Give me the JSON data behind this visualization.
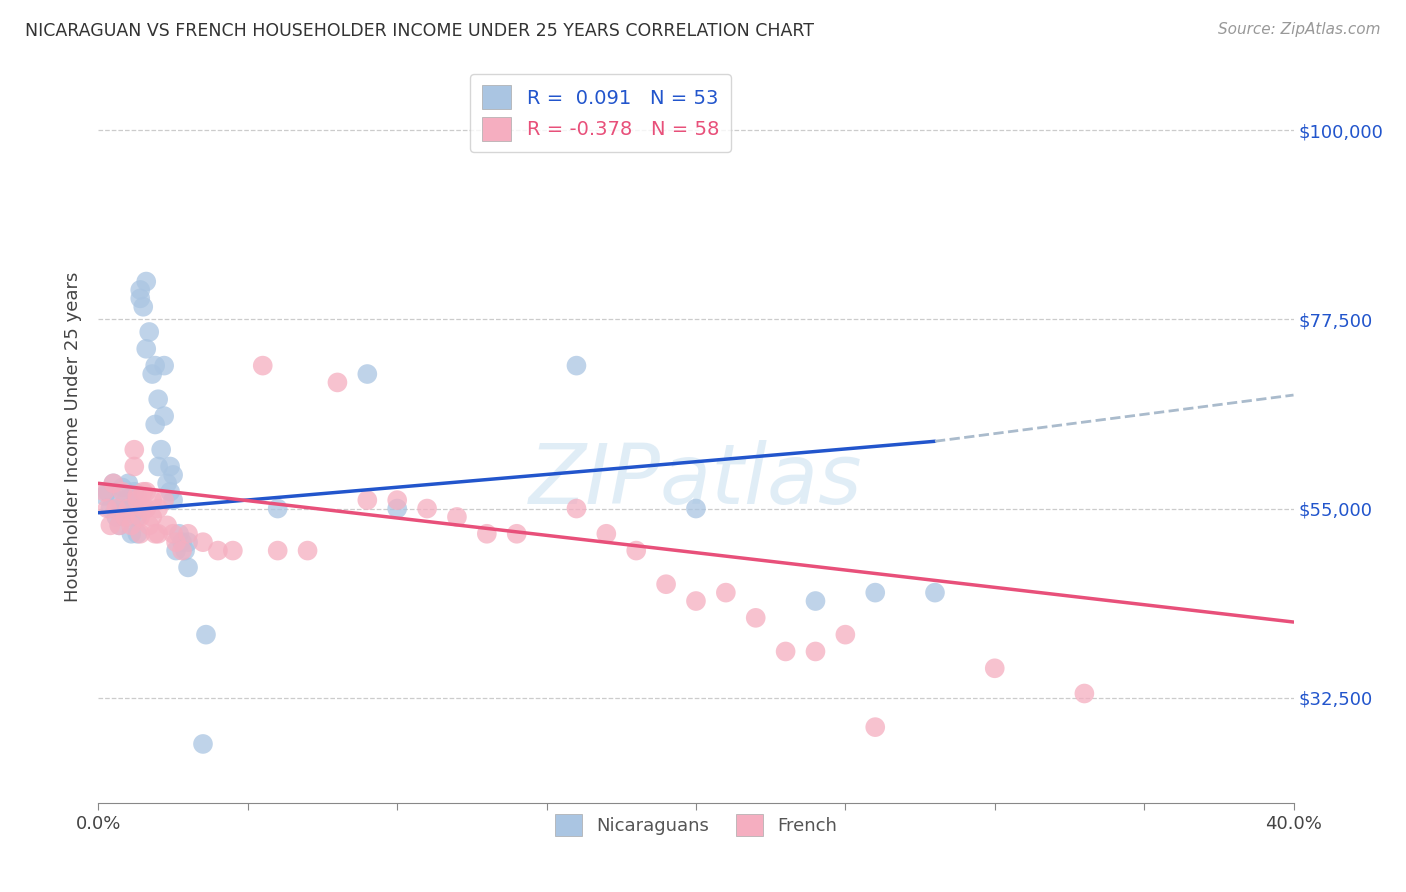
{
  "title": "NICARAGUAN VS FRENCH HOUSEHOLDER INCOME UNDER 25 YEARS CORRELATION CHART",
  "source": "Source: ZipAtlas.com",
  "ylabel": "Householder Income Under 25 years",
  "xlim": [
    0.0,
    0.4
  ],
  "ylim": [
    20000,
    107000
  ],
  "yticks": [
    32500,
    55000,
    77500,
    100000
  ],
  "ytick_labels": [
    "$32,500",
    "$55,000",
    "$77,500",
    "$100,000"
  ],
  "xticks": [
    0.0,
    0.05,
    0.1,
    0.15,
    0.2,
    0.25,
    0.3,
    0.35,
    0.4
  ],
  "xtick_labels": [
    "0.0%",
    "",
    "",
    "",
    "",
    "",
    "",
    "",
    "40.0%"
  ],
  "legend_R_blue": "0.091",
  "legend_N_blue": "53",
  "legend_R_pink": "-0.378",
  "legend_N_pink": "58",
  "blue_color": "#aac5e2",
  "pink_color": "#f5aec0",
  "blue_line_color": "#2255cc",
  "pink_line_color": "#e8507a",
  "dash_color": "#aabbcc",
  "blue_scatter": [
    [
      0.002,
      56500
    ],
    [
      0.003,
      57000
    ],
    [
      0.004,
      55000
    ],
    [
      0.005,
      58000
    ],
    [
      0.006,
      54000
    ],
    [
      0.007,
      56000
    ],
    [
      0.007,
      53000
    ],
    [
      0.008,
      57500
    ],
    [
      0.008,
      54500
    ],
    [
      0.009,
      56000
    ],
    [
      0.01,
      55000
    ],
    [
      0.01,
      58000
    ],
    [
      0.011,
      54000
    ],
    [
      0.011,
      52000
    ],
    [
      0.012,
      57000
    ],
    [
      0.012,
      55000
    ],
    [
      0.013,
      54000
    ],
    [
      0.013,
      52000
    ],
    [
      0.014,
      80000
    ],
    [
      0.014,
      81000
    ],
    [
      0.015,
      79000
    ],
    [
      0.016,
      82000
    ],
    [
      0.016,
      74000
    ],
    [
      0.017,
      76000
    ],
    [
      0.018,
      71000
    ],
    [
      0.019,
      72000
    ],
    [
      0.019,
      65000
    ],
    [
      0.02,
      68000
    ],
    [
      0.02,
      60000
    ],
    [
      0.021,
      62000
    ],
    [
      0.022,
      66000
    ],
    [
      0.022,
      72000
    ],
    [
      0.023,
      58000
    ],
    [
      0.024,
      57000
    ],
    [
      0.024,
      60000
    ],
    [
      0.025,
      56000
    ],
    [
      0.025,
      59000
    ],
    [
      0.026,
      50000
    ],
    [
      0.027,
      52000
    ],
    [
      0.028,
      51000
    ],
    [
      0.029,
      50000
    ],
    [
      0.03,
      48000
    ],
    [
      0.03,
      51000
    ],
    [
      0.035,
      27000
    ],
    [
      0.036,
      40000
    ],
    [
      0.06,
      55000
    ],
    [
      0.09,
      71000
    ],
    [
      0.1,
      55000
    ],
    [
      0.16,
      72000
    ],
    [
      0.2,
      55000
    ],
    [
      0.24,
      44000
    ],
    [
      0.26,
      45000
    ],
    [
      0.28,
      45000
    ]
  ],
  "pink_scatter": [
    [
      0.002,
      57000
    ],
    [
      0.003,
      55000
    ],
    [
      0.004,
      53000
    ],
    [
      0.005,
      58000
    ],
    [
      0.006,
      55000
    ],
    [
      0.007,
      53000
    ],
    [
      0.008,
      57000
    ],
    [
      0.009,
      54000
    ],
    [
      0.01,
      55000
    ],
    [
      0.011,
      53000
    ],
    [
      0.012,
      62000
    ],
    [
      0.012,
      60000
    ],
    [
      0.013,
      56000
    ],
    [
      0.013,
      56500
    ],
    [
      0.014,
      54000
    ],
    [
      0.014,
      52000
    ],
    [
      0.015,
      57000
    ],
    [
      0.015,
      55000
    ],
    [
      0.016,
      57000
    ],
    [
      0.016,
      55000
    ],
    [
      0.017,
      53000
    ],
    [
      0.018,
      56000
    ],
    [
      0.018,
      54000
    ],
    [
      0.019,
      52000
    ],
    [
      0.02,
      55000
    ],
    [
      0.02,
      52000
    ],
    [
      0.022,
      56000
    ],
    [
      0.023,
      53000
    ],
    [
      0.025,
      52000
    ],
    [
      0.026,
      51000
    ],
    [
      0.028,
      50000
    ],
    [
      0.03,
      52000
    ],
    [
      0.035,
      51000
    ],
    [
      0.04,
      50000
    ],
    [
      0.045,
      50000
    ],
    [
      0.055,
      72000
    ],
    [
      0.06,
      50000
    ],
    [
      0.07,
      50000
    ],
    [
      0.08,
      70000
    ],
    [
      0.09,
      56000
    ],
    [
      0.1,
      56000
    ],
    [
      0.11,
      55000
    ],
    [
      0.12,
      54000
    ],
    [
      0.13,
      52000
    ],
    [
      0.14,
      52000
    ],
    [
      0.16,
      55000
    ],
    [
      0.17,
      52000
    ],
    [
      0.18,
      50000
    ],
    [
      0.19,
      46000
    ],
    [
      0.2,
      44000
    ],
    [
      0.21,
      45000
    ],
    [
      0.22,
      42000
    ],
    [
      0.23,
      38000
    ],
    [
      0.24,
      38000
    ],
    [
      0.25,
      40000
    ],
    [
      0.26,
      29000
    ],
    [
      0.3,
      36000
    ],
    [
      0.33,
      33000
    ]
  ],
  "background_color": "#ffffff",
  "grid_color": "#cccccc"
}
